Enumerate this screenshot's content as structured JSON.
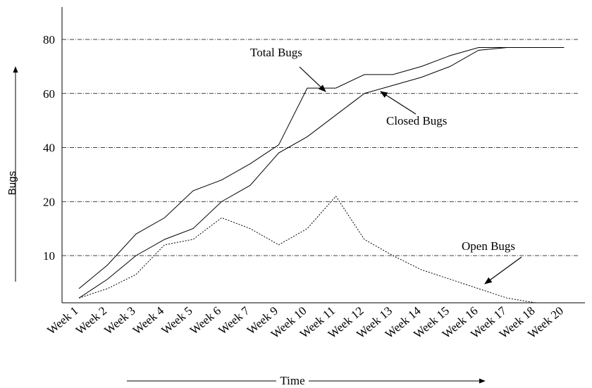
{
  "chart_data": {
    "type": "line",
    "categories": [
      "Week 1",
      "Week 2",
      "Week 3",
      "Week 4",
      "Week 5",
      "Week 6",
      "Week 7",
      "Week 9",
      "Week 10",
      "Week 11",
      "Week 12",
      "Week 13",
      "Week 14",
      "Week 15",
      "Week 16",
      "Week 17",
      "Week 18",
      "Week 20"
    ],
    "series": [
      {
        "name": "Total Bugs",
        "color": "#000000",
        "values": [
          3,
          8,
          14,
          17,
          24,
          28,
          34,
          41,
          62,
          62,
          67,
          67,
          70,
          74,
          77,
          77,
          77,
          77
        ]
      },
      {
        "name": "Closed Bugs",
        "color": "#000000",
        "values": [
          1,
          5,
          10,
          13,
          15,
          20,
          26,
          38,
          44,
          52,
          60,
          63,
          66,
          70,
          76,
          77,
          77,
          77
        ]
      },
      {
        "name": "Open Bugs",
        "color": "#000000",
        "values": [
          1,
          3,
          6,
          12,
          13,
          17,
          15,
          12,
          15,
          22,
          13,
          10,
          7,
          5,
          3,
          1,
          0,
          null
        ]
      }
    ],
    "ylim": [
      0,
      80
    ],
    "yticks": [
      10,
      20,
      40,
      60,
      80
    ],
    "grid": true,
    "y_label": "Bugs",
    "x_label": "Time"
  }
}
